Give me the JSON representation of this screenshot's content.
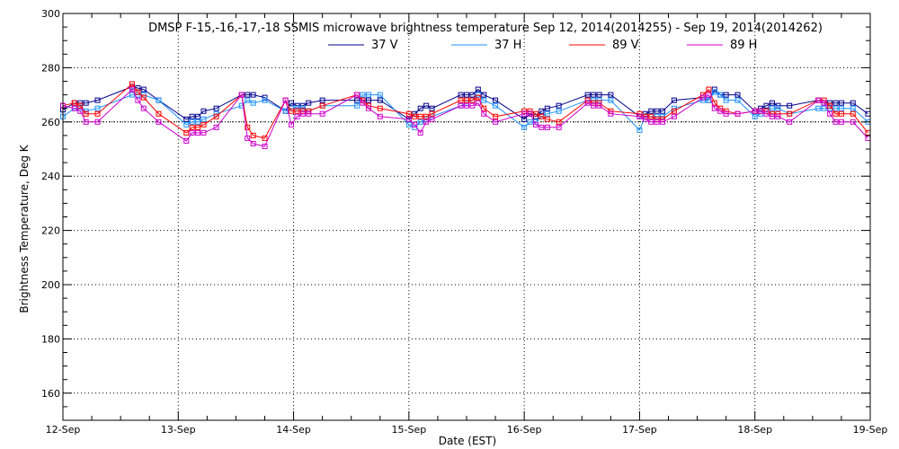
{
  "chart_data": {
    "type": "line",
    "title": "DMSP F-15,-16,-17,-18 SSMIS microwave brightness temperature Sep 12, 2014(2014255) - Sep 19, 2014(2014262)",
    "xlabel": "Date (EST)",
    "ylabel": "Brightness Temperature, Deg K",
    "xlim": [
      0,
      7
    ],
    "ylim": [
      150,
      300
    ],
    "x_ticks": [
      {
        "value": 0,
        "label": "12-Sep"
      },
      {
        "value": 1,
        "label": "13-Sep"
      },
      {
        "value": 2,
        "label": "14-Sep"
      },
      {
        "value": 3,
        "label": "15-Sep"
      },
      {
        "value": 4,
        "label": "16-Sep"
      },
      {
        "value": 5,
        "label": "17-Sep"
      },
      {
        "value": 6,
        "label": "18-Sep"
      },
      {
        "value": 7,
        "label": "19-Sep"
      }
    ],
    "y_ticks": [
      160,
      180,
      200,
      220,
      240,
      260,
      280,
      300
    ],
    "reference_line": 260,
    "grid": true,
    "legend_position": "top",
    "series": [
      {
        "name": "37 V",
        "color": "#00008b",
        "x": [
          0.0,
          0.1,
          0.15,
          0.2,
          0.3,
          0.6,
          0.65,
          0.7,
          0.83,
          1.07,
          1.12,
          1.17,
          1.22,
          1.33,
          1.55,
          1.6,
          1.65,
          1.75,
          1.93,
          1.98,
          2.03,
          2.08,
          2.13,
          2.25,
          2.55,
          2.6,
          2.65,
          2.75,
          3.0,
          3.05,
          3.1,
          3.15,
          3.2,
          3.45,
          3.5,
          3.55,
          3.6,
          3.65,
          3.75,
          4.0,
          4.05,
          4.1,
          4.15,
          4.2,
          4.3,
          4.55,
          4.6,
          4.65,
          4.75,
          5.0,
          5.05,
          5.1,
          5.15,
          5.2,
          5.3,
          5.55,
          5.6,
          5.65,
          5.7,
          5.75,
          5.85,
          6.0,
          6.05,
          6.1,
          6.15,
          6.2,
          6.3,
          6.55,
          6.6,
          6.65,
          6.7,
          6.75,
          6.85,
          6.98
        ],
        "y": [
          264.5,
          267,
          267,
          267,
          268,
          273,
          272.5,
          272,
          268,
          261,
          262,
          262,
          264,
          265,
          270,
          270,
          270,
          269,
          264,
          267,
          266,
          266,
          267,
          268,
          268,
          268,
          268,
          268,
          261,
          263,
          265,
          266,
          265,
          270,
          270,
          270,
          272,
          270,
          268,
          261,
          263,
          262,
          264,
          265,
          266,
          270,
          270,
          270,
          270,
          262,
          263,
          264,
          264,
          264,
          268,
          269,
          268,
          272,
          270,
          270,
          270,
          264,
          265,
          266,
          267,
          266,
          266,
          268,
          267,
          267,
          267,
          267,
          267,
          263
        ]
      },
      {
        "name": "37 H",
        "color": "#1e90ff",
        "x": [
          0.0,
          0.1,
          0.15,
          0.2,
          0.3,
          0.6,
          0.65,
          0.7,
          0.83,
          1.07,
          1.12,
          1.17,
          1.22,
          1.33,
          1.55,
          1.6,
          1.65,
          1.75,
          1.93,
          1.98,
          2.03,
          2.08,
          2.13,
          2.25,
          2.55,
          2.6,
          2.65,
          2.75,
          3.0,
          3.05,
          3.1,
          3.15,
          3.2,
          3.45,
          3.5,
          3.55,
          3.6,
          3.65,
          3.75,
          4.0,
          4.05,
          4.1,
          4.15,
          4.2,
          4.3,
          4.55,
          4.6,
          4.65,
          4.75,
          5.0,
          5.05,
          5.1,
          5.15,
          5.2,
          5.3,
          5.55,
          5.6,
          5.65,
          5.7,
          5.75,
          5.85,
          6.0,
          6.05,
          6.1,
          6.15,
          6.2,
          6.3,
          6.55,
          6.6,
          6.65,
          6.7,
          6.75,
          6.85,
          6.98
        ],
        "y": [
          262,
          265,
          265,
          264,
          265,
          270,
          270,
          270,
          268,
          259,
          260,
          260,
          261,
          263,
          266,
          268,
          267,
          268,
          264,
          265,
          265,
          265,
          264,
          266,
          266,
          270,
          270,
          270,
          259,
          258,
          260,
          261,
          262,
          266,
          267,
          268,
          270,
          268,
          266,
          258,
          260,
          260,
          262,
          263,
          264,
          268,
          268,
          268,
          268,
          257,
          262,
          262,
          262,
          262,
          265,
          268,
          268,
          271,
          270,
          268,
          268,
          262,
          263,
          264,
          265,
          265,
          263,
          265,
          265,
          265,
          265,
          265,
          265,
          260
        ]
      },
      {
        "name": "89 V",
        "color": "#ff0000",
        "x": [
          0.0,
          0.1,
          0.15,
          0.2,
          0.3,
          0.6,
          0.65,
          0.7,
          0.83,
          1.07,
          1.12,
          1.17,
          1.22,
          1.33,
          1.55,
          1.6,
          1.65,
          1.75,
          1.93,
          1.98,
          2.03,
          2.08,
          2.13,
          2.25,
          2.55,
          2.6,
          2.65,
          2.75,
          3.0,
          3.05,
          3.1,
          3.15,
          3.2,
          3.45,
          3.5,
          3.55,
          3.6,
          3.65,
          3.75,
          4.0,
          4.05,
          4.1,
          4.15,
          4.2,
          4.3,
          4.55,
          4.6,
          4.65,
          4.75,
          5.0,
          5.05,
          5.1,
          5.15,
          5.2,
          5.3,
          5.55,
          5.6,
          5.65,
          5.7,
          5.75,
          5.85,
          6.0,
          6.05,
          6.1,
          6.15,
          6.2,
          6.3,
          6.55,
          6.6,
          6.65,
          6.7,
          6.75,
          6.85,
          6.98
        ],
        "y": [
          266,
          267,
          266,
          263,
          263,
          274,
          271,
          269,
          263,
          256,
          258,
          258,
          259,
          262,
          270,
          258,
          255,
          254,
          268,
          264,
          264,
          264,
          264,
          266,
          270,
          268,
          266,
          265,
          263,
          262,
          262,
          262,
          263,
          268,
          268,
          268,
          269,
          265,
          262,
          264,
          264,
          263,
          262,
          261,
          260,
          268,
          267,
          267,
          264,
          263,
          262,
          262,
          261,
          261,
          264,
          270,
          272,
          267,
          265,
          264,
          263,
          264,
          264,
          264,
          263,
          263,
          263,
          268,
          268,
          266,
          263,
          263,
          263,
          256
        ]
      },
      {
        "name": "89 H",
        "color": "#cc00cc",
        "x": [
          0.0,
          0.1,
          0.15,
          0.2,
          0.3,
          0.6,
          0.65,
          0.7,
          0.83,
          1.07,
          1.12,
          1.17,
          1.22,
          1.33,
          1.55,
          1.6,
          1.65,
          1.75,
          1.93,
          1.98,
          2.03,
          2.08,
          2.13,
          2.25,
          2.55,
          2.6,
          2.65,
          2.75,
          3.0,
          3.05,
          3.1,
          3.15,
          3.2,
          3.45,
          3.5,
          3.55,
          3.6,
          3.65,
          3.75,
          4.0,
          4.05,
          4.1,
          4.15,
          4.2,
          4.3,
          4.55,
          4.6,
          4.65,
          4.75,
          5.0,
          5.05,
          5.1,
          5.15,
          5.2,
          5.3,
          5.55,
          5.6,
          5.65,
          5.7,
          5.75,
          5.85,
          6.0,
          6.05,
          6.1,
          6.15,
          6.2,
          6.3,
          6.55,
          6.6,
          6.65,
          6.7,
          6.75,
          6.85,
          6.98
        ],
        "y": [
          266,
          265,
          264,
          260,
          260,
          272,
          268,
          265,
          260,
          253,
          256,
          256,
          256,
          258,
          270,
          254,
          252,
          251,
          268,
          259,
          262,
          263,
          263,
          263,
          270,
          267,
          265,
          262,
          261,
          259,
          256,
          260,
          261,
          266,
          266,
          266,
          267,
          263,
          260,
          263,
          263,
          259,
          258,
          258,
          258,
          267,
          266,
          266,
          263,
          262,
          261,
          260,
          260,
          260,
          262,
          269,
          270,
          265,
          264,
          263,
          263,
          264,
          264,
          263,
          262,
          262,
          260,
          268,
          267,
          263,
          260,
          260,
          260,
          254
        ]
      }
    ]
  }
}
